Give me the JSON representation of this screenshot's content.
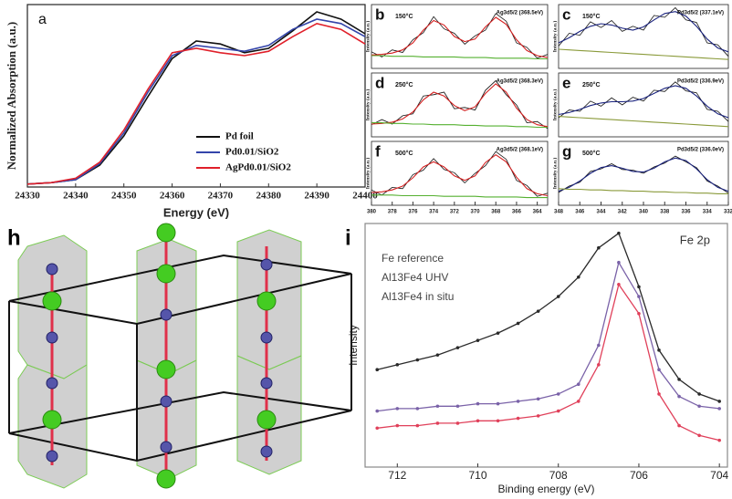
{
  "chart_data": [
    {
      "type": "line",
      "panel": "a",
      "xlabel": "Energy (eV)",
      "ylabel": "Normalized Absorption (a.u.)",
      "xlim": [
        24330,
        24400
      ],
      "ylim": [
        0,
        1.25
      ],
      "xticks": [
        24330,
        24340,
        24350,
        24360,
        24370,
        24380,
        24390,
        24400
      ],
      "legend": "center right",
      "x": [
        24330,
        24335,
        24340,
        24345,
        24350,
        24355,
        24360,
        24365,
        24370,
        24375,
        24380,
        24385,
        24390,
        24395,
        24400
      ],
      "series": [
        {
          "name": "Pd foil",
          "color": "#111111",
          "values": [
            0.02,
            0.03,
            0.05,
            0.15,
            0.35,
            0.62,
            0.88,
            1.0,
            0.98,
            0.92,
            0.95,
            1.07,
            1.2,
            1.15,
            1.05
          ]
        },
        {
          "name": "Pd0.01/SiO2",
          "color": "#3344aa",
          "values": [
            0.02,
            0.03,
            0.05,
            0.16,
            0.37,
            0.65,
            0.9,
            0.97,
            0.95,
            0.93,
            0.97,
            1.08,
            1.15,
            1.12,
            1.03
          ]
        },
        {
          "name": "AgPd0.01/SiO2",
          "color": "#e0202a",
          "values": [
            0.02,
            0.03,
            0.06,
            0.17,
            0.39,
            0.67,
            0.92,
            0.95,
            0.92,
            0.9,
            0.93,
            1.03,
            1.12,
            1.08,
            0.98
          ]
        }
      ]
    },
    {
      "type": "line",
      "panel": "b",
      "ylabel": "Intensity (a.u.)",
      "annotations": [
        "150°C",
        "Ag3d5/2 (368.5eV)"
      ],
      "xlim": [
        380,
        363
      ],
      "ylim": [
        0,
        10
      ],
      "x": [
        380,
        379,
        378,
        377,
        376,
        375,
        374,
        373,
        372,
        371,
        370,
        369,
        368,
        367,
        366,
        365,
        364,
        363
      ],
      "series": [
        {
          "color": "#111111",
          "values": [
            2.6,
            1.8,
            2.9,
            2.5,
            4.5,
            5.6,
            8.1,
            6.2,
            5.5,
            3.8,
            5.1,
            6.0,
            8.6,
            7.4,
            4.0,
            3.3,
            1.6,
            2.2
          ]
        },
        {
          "color": "#d42020",
          "values": [
            2.1,
            2.2,
            2.4,
            2.9,
            4.0,
            6.0,
            7.5,
            6.8,
            5.0,
            4.2,
            4.6,
            6.5,
            8.0,
            6.9,
            4.5,
            2.8,
            2.0,
            1.7
          ]
        },
        {
          "color": "#55b030",
          "values": [
            2.0,
            2.0,
            1.9,
            1.9,
            1.9,
            1.8,
            1.8,
            1.8,
            1.8,
            1.7,
            1.7,
            1.7,
            1.6,
            1.6,
            1.6,
            1.6,
            1.5,
            1.5
          ]
        }
      ]
    },
    {
      "type": "line",
      "panel": "c",
      "ylabel": "Intensity (a.u.)",
      "annotations": [
        "150°C",
        "Pd3d5/2 (337.1eV)"
      ],
      "xlim": [
        348,
        332
      ],
      "ylim": [
        0,
        10
      ],
      "x": [
        348,
        347,
        346,
        345,
        344,
        343,
        342,
        341,
        340,
        339,
        338,
        337,
        336,
        335,
        334,
        333,
        332
      ],
      "series": [
        {
          "color": "#111111",
          "values": [
            3.5,
            5.5,
            5.2,
            7.3,
            6.4,
            7.5,
            5.8,
            6.6,
            6.0,
            8.3,
            8.0,
            9.5,
            7.6,
            7.2,
            4.0,
            3.7,
            1.9
          ]
        },
        {
          "color": "#1a237e",
          "values": [
            4.0,
            4.8,
            5.8,
            6.6,
            7.0,
            6.8,
            6.3,
            6.0,
            6.5,
            7.6,
            8.6,
            8.9,
            8.2,
            6.6,
            4.6,
            3.2,
            2.6
          ]
        },
        {
          "color": "#8a9a3a",
          "values": [
            3.0,
            2.9,
            2.8,
            2.7,
            2.6,
            2.5,
            2.4,
            2.3,
            2.2,
            2.1,
            2.0,
            1.9,
            1.8,
            1.7,
            1.6,
            1.5,
            1.4
          ]
        }
      ]
    },
    {
      "type": "line",
      "panel": "d",
      "ylabel": "Intensity (a.u.)",
      "annotations": [
        "250°C",
        "Ag3d5/2 (368.3eV)"
      ],
      "xlim": [
        380,
        363
      ],
      "ylim": [
        0,
        10
      ],
      "x": [
        380,
        379,
        378,
        377,
        376,
        375,
        374,
        373,
        372,
        371,
        370,
        369,
        368,
        367,
        366,
        365,
        364,
        363
      ],
      "series": [
        {
          "color": "#111111",
          "values": [
            1.9,
            2.7,
            2.0,
            3.3,
            3.6,
            6.4,
            6.6,
            7.0,
            4.4,
            4.6,
            4.2,
            7.3,
            8.8,
            6.6,
            5.0,
            2.2,
            2.4,
            1.3
          ]
        },
        {
          "color": "#d42020",
          "values": [
            2.0,
            2.1,
            2.3,
            2.8,
            3.9,
            5.8,
            7.0,
            6.4,
            4.9,
            4.1,
            4.7,
            6.8,
            8.3,
            7.0,
            4.5,
            2.7,
            1.9,
            1.6
          ]
        },
        {
          "color": "#55b030",
          "values": [
            2.2,
            2.2,
            2.1,
            2.1,
            2.0,
            2.0,
            1.9,
            1.9,
            1.9,
            1.8,
            1.8,
            1.7,
            1.7,
            1.7,
            1.6,
            1.6,
            1.5,
            1.5
          ]
        }
      ]
    },
    {
      "type": "line",
      "panel": "e",
      "ylabel": "Intensity (a.u.)",
      "annotations": [
        "250°C",
        "Pd3d5/2 (336.9eV)"
      ],
      "xlim": [
        348,
        332
      ],
      "ylim": [
        0,
        10
      ],
      "x": [
        348,
        347,
        346,
        345,
        344,
        343,
        342,
        341,
        340,
        339,
        338,
        337,
        336,
        335,
        334,
        333,
        332
      ],
      "series": [
        {
          "color": "#111111",
          "values": [
            3.0,
            4.2,
            4.0,
            5.6,
            4.8,
            6.1,
            5.0,
            6.2,
            5.6,
            7.3,
            7.1,
            8.6,
            7.2,
            6.9,
            4.3,
            4.0,
            2.4
          ]
        },
        {
          "color": "#1a237e",
          "values": [
            3.5,
            3.8,
            4.3,
            4.9,
            5.3,
            5.5,
            5.5,
            5.6,
            6.0,
            6.8,
            7.6,
            8.0,
            7.6,
            6.4,
            4.8,
            3.6,
            3.0
          ]
        },
        {
          "color": "#8a9a3a",
          "values": [
            3.2,
            3.1,
            3.0,
            2.9,
            2.8,
            2.7,
            2.6,
            2.5,
            2.4,
            2.3,
            2.2,
            2.1,
            2.0,
            1.9,
            1.8,
            1.7,
            1.6
          ]
        }
      ]
    },
    {
      "type": "line",
      "panel": "f",
      "ylabel": "Intensity (a.u.)",
      "annotations": [
        "500°C",
        "Ag3d5/2 (368.1eV)"
      ],
      "xlim": [
        380,
        363
      ],
      "ylim": [
        0,
        10
      ],
      "xticks": [
        380,
        378,
        376,
        374,
        372,
        370,
        368,
        366,
        364
      ],
      "x": [
        380,
        379,
        378,
        377,
        376,
        375,
        374,
        373,
        372,
        371,
        370,
        369,
        368,
        367,
        366,
        365,
        364,
        363
      ],
      "series": [
        {
          "color": "#111111",
          "values": [
            2.4,
            1.6,
            2.8,
            2.6,
            4.8,
            5.5,
            7.3,
            5.6,
            5.1,
            3.5,
            5.0,
            6.2,
            8.4,
            7.2,
            3.9,
            3.1,
            1.4,
            1.9
          ]
        },
        {
          "color": "#d42020",
          "values": [
            2.0,
            2.1,
            2.4,
            3.0,
            4.3,
            6.0,
            6.8,
            6.0,
            4.6,
            3.9,
            4.6,
            6.7,
            7.9,
            6.8,
            4.4,
            2.6,
            1.8,
            1.5
          ]
        },
        {
          "color": "#55b030",
          "values": [
            1.6,
            1.6,
            1.6,
            1.5,
            1.5,
            1.5,
            1.5,
            1.4,
            1.4,
            1.4,
            1.4,
            1.3,
            1.3,
            1.3,
            1.3,
            1.2,
            1.2,
            1.2
          ]
        }
      ]
    },
    {
      "type": "line",
      "panel": "g",
      "ylabel": "Intensity (a.u.)",
      "annotations": [
        "500°C",
        "Pd3d5/2 (336.0eV)"
      ],
      "xlim": [
        348,
        332
      ],
      "ylim": [
        0,
        10
      ],
      "xticks": [
        348,
        346,
        344,
        342,
        340,
        338,
        336,
        334,
        332
      ],
      "x": [
        348,
        347,
        346,
        345,
        344,
        343,
        342,
        341,
        340,
        339,
        338,
        337,
        336,
        335,
        334,
        333,
        332
      ],
      "series": [
        {
          "color": "#111111",
          "values": [
            2.0,
            3.0,
            3.6,
            5.3,
            5.7,
            6.5,
            5.6,
            5.5,
            5.0,
            6.0,
            6.6,
            7.7,
            6.8,
            5.9,
            3.8,
            3.0,
            1.9
          ]
        },
        {
          "color": "#1a237e",
          "values": [
            2.2,
            2.8,
            3.8,
            5.0,
            5.9,
            6.2,
            5.8,
            5.3,
            5.2,
            5.8,
            6.8,
            7.4,
            7.0,
            5.7,
            4.0,
            2.8,
            2.2
          ]
        },
        {
          "color": "#8a9a3a",
          "values": [
            2.6,
            2.5,
            2.5,
            2.4,
            2.4,
            2.3,
            2.3,
            2.2,
            2.2,
            2.1,
            2.1,
            2.0,
            2.0,
            1.9,
            1.9,
            1.8,
            1.8
          ]
        }
      ]
    },
    {
      "type": "line",
      "panel": "i",
      "xlabel": "Binding energy (eV)",
      "ylabel": "Intensity",
      "annotations": [
        "Fe 2p"
      ],
      "xlim": [
        712.8,
        703.8
      ],
      "ylim": [
        0,
        10
      ],
      "xticks": [
        712,
        710,
        708,
        706,
        704
      ],
      "legend": "upper left",
      "legend_lines": false,
      "markers": true,
      "x": [
        712.5,
        712,
        711.5,
        711,
        710.5,
        710,
        709.5,
        709,
        708.5,
        708,
        707.5,
        707,
        706.5,
        706,
        705.5,
        705,
        704.5,
        704
      ],
      "series": [
        {
          "name": "Fe reference",
          "color": "#2a2a2a",
          "values": [
            4.0,
            4.2,
            4.4,
            4.6,
            4.9,
            5.2,
            5.5,
            5.9,
            6.4,
            7.0,
            7.8,
            9.0,
            9.6,
            7.4,
            4.8,
            3.6,
            3.0,
            2.7
          ]
        },
        {
          "name": "Al13Fe4 UHV",
          "color": "#7a62a8",
          "values": [
            2.3,
            2.4,
            2.4,
            2.5,
            2.5,
            2.6,
            2.6,
            2.7,
            2.8,
            3.0,
            3.4,
            5.0,
            8.4,
            7.0,
            4.0,
            2.9,
            2.5,
            2.4
          ]
        },
        {
          "name": "Al13Fe4 in situ",
          "color": "#e0405a",
          "values": [
            1.6,
            1.7,
            1.7,
            1.8,
            1.8,
            1.9,
            1.9,
            2.0,
            2.1,
            2.3,
            2.7,
            4.2,
            7.5,
            6.3,
            3.0,
            1.7,
            1.3,
            1.1
          ]
        }
      ]
    }
  ],
  "structure": {
    "label": "h"
  }
}
